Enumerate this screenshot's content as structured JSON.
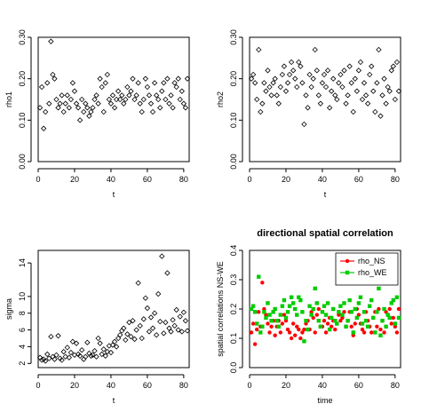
{
  "chart_data": [
    {
      "type": "scatter",
      "title": "",
      "xlabel": "t",
      "ylabel": "rho1",
      "xlim": [
        0,
        83
      ],
      "ylim": [
        0,
        0.3
      ],
      "xticks": [
        "0",
        "20",
        "40",
        "60",
        "80"
      ],
      "yticks": [
        "0.00",
        "0.10",
        "0.20",
        "0.30"
      ],
      "marker": "open-diamond",
      "series": [
        {
          "color": "#000000",
          "x": [
            1,
            2,
            3,
            4,
            5,
            6,
            7,
            8,
            9,
            10,
            11,
            12,
            13,
            14,
            15,
            16,
            17,
            18,
            19,
            20,
            21,
            22,
            23,
            24,
            25,
            26,
            27,
            28,
            29,
            30,
            31,
            32,
            33,
            34,
            35,
            36,
            37,
            38,
            39,
            40,
            41,
            42,
            43,
            44,
            45,
            46,
            47,
            48,
            49,
            50,
            51,
            52,
            53,
            54,
            55,
            56,
            57,
            58,
            59,
            60,
            61,
            62,
            63,
            64,
            65,
            66,
            67,
            68,
            69,
            70,
            71,
            72,
            73,
            74,
            75,
            76,
            77,
            78,
            79,
            80,
            81,
            82
          ],
          "y": [
            0.13,
            0.18,
            0.08,
            0.12,
            0.19,
            0.14,
            0.29,
            0.21,
            0.2,
            0.15,
            0.13,
            0.14,
            0.16,
            0.12,
            0.14,
            0.16,
            0.13,
            0.15,
            0.19,
            0.17,
            0.14,
            0.13,
            0.1,
            0.15,
            0.12,
            0.14,
            0.13,
            0.11,
            0.12,
            0.13,
            0.15,
            0.16,
            0.14,
            0.2,
            0.18,
            0.12,
            0.19,
            0.21,
            0.15,
            0.14,
            0.16,
            0.13,
            0.15,
            0.17,
            0.15,
            0.16,
            0.14,
            0.15,
            0.18,
            0.16,
            0.17,
            0.2,
            0.15,
            0.16,
            0.19,
            0.14,
            0.12,
            0.15,
            0.2,
            0.18,
            0.16,
            0.14,
            0.12,
            0.19,
            0.16,
            0.15,
            0.13,
            0.17,
            0.19,
            0.15,
            0.2,
            0.14,
            0.16,
            0.13,
            0.19,
            0.18,
            0.2,
            0.15,
            0.17,
            0.14,
            0.13,
            0.2
          ]
        }
      ]
    },
    {
      "type": "scatter",
      "title": "",
      "xlabel": "t",
      "ylabel": "rho2",
      "xlim": [
        0,
        83
      ],
      "ylim": [
        0,
        0.3
      ],
      "xticks": [
        "0",
        "20",
        "40",
        "60",
        "80"
      ],
      "yticks": [
        "0.00",
        "0.10",
        "0.20",
        "0.30"
      ],
      "marker": "open-diamond",
      "series": [
        {
          "color": "#000000",
          "x": [
            1,
            2,
            3,
            4,
            5,
            6,
            7,
            8,
            9,
            10,
            11,
            12,
            13,
            14,
            15,
            16,
            17,
            18,
            19,
            20,
            21,
            22,
            23,
            24,
            25,
            26,
            27,
            28,
            29,
            30,
            31,
            32,
            33,
            34,
            35,
            36,
            37,
            38,
            39,
            40,
            41,
            42,
            43,
            44,
            45,
            46,
            47,
            48,
            49,
            50,
            51,
            52,
            53,
            54,
            55,
            56,
            57,
            58,
            59,
            60,
            61,
            62,
            63,
            64,
            65,
            66,
            67,
            68,
            69,
            70,
            71,
            72,
            73,
            74,
            75,
            76,
            77,
            78,
            79,
            80,
            81,
            82
          ],
          "y": [
            0.2,
            0.21,
            0.19,
            0.15,
            0.27,
            0.12,
            0.14,
            0.19,
            0.17,
            0.22,
            0.18,
            0.16,
            0.19,
            0.2,
            0.16,
            0.14,
            0.18,
            0.21,
            0.23,
            0.17,
            0.19,
            0.21,
            0.24,
            0.22,
            0.2,
            0.18,
            0.24,
            0.23,
            0.19,
            0.09,
            0.16,
            0.13,
            0.21,
            0.18,
            0.2,
            0.27,
            0.22,
            0.16,
            0.14,
            0.19,
            0.21,
            0.18,
            0.22,
            0.13,
            0.17,
            0.2,
            0.16,
            0.15,
            0.19,
            0.21,
            0.18,
            0.22,
            0.14,
            0.16,
            0.23,
            0.19,
            0.12,
            0.2,
            0.17,
            0.22,
            0.24,
            0.15,
            0.19,
            0.16,
            0.14,
            0.21,
            0.23,
            0.17,
            0.12,
            0.19,
            0.27,
            0.11,
            0.16,
            0.2,
            0.14,
            0.18,
            0.17,
            0.22,
            0.23,
            0.15,
            0.24,
            0.17
          ]
        }
      ]
    },
    {
      "type": "scatter",
      "title": "",
      "xlabel": "t",
      "ylabel": "sigma",
      "xlim": [
        0,
        83
      ],
      "ylim": [
        1.5,
        15.5
      ],
      "xticks": [
        "0",
        "20",
        "40",
        "60",
        "80"
      ],
      "yticks": [
        "2",
        "4",
        "6",
        "8",
        "10",
        "14"
      ],
      "marker": "open-diamond",
      "series": [
        {
          "color": "#000000",
          "x": [
            1,
            2,
            3,
            4,
            5,
            6,
            7,
            8,
            9,
            10,
            11,
            12,
            13,
            14,
            15,
            16,
            17,
            18,
            19,
            20,
            21,
            22,
            23,
            24,
            25,
            26,
            27,
            28,
            29,
            30,
            31,
            32,
            33,
            34,
            35,
            36,
            37,
            38,
            39,
            40,
            41,
            42,
            43,
            44,
            45,
            46,
            47,
            48,
            49,
            50,
            51,
            52,
            53,
            54,
            55,
            56,
            57,
            58,
            59,
            60,
            61,
            62,
            63,
            64,
            65,
            66,
            67,
            68,
            69,
            70,
            71,
            72,
            73,
            74,
            75,
            76,
            77,
            78,
            79,
            80,
            81,
            82
          ],
          "y": [
            2.7,
            2.4,
            2.5,
            2.3,
            3.1,
            2.6,
            5.2,
            2.8,
            2.5,
            3.0,
            5.3,
            2.6,
            2.4,
            3.4,
            2.8,
            3.9,
            2.7,
            3.3,
            4.6,
            3.0,
            4.4,
            3.1,
            2.9,
            3.6,
            2.5,
            2.8,
            4.5,
            3.2,
            2.9,
            3.0,
            3.5,
            2.8,
            5.0,
            4.4,
            3.1,
            3.7,
            2.9,
            3.4,
            4.1,
            3.3,
            4.2,
            4.6,
            4.0,
            5.0,
            5.4,
            5.9,
            6.2,
            4.8,
            5.5,
            6.9,
            5.2,
            7.1,
            4.9,
            6.0,
            11.6,
            6.5,
            5.0,
            7.3,
            9.8,
            8.6,
            5.8,
            7.5,
            6.2,
            8.0,
            5.4,
            10.3,
            7.0,
            14.8,
            5.6,
            6.9,
            12.8,
            6.2,
            5.8,
            7.2,
            6.5,
            8.4,
            6.0,
            7.6,
            5.8,
            8.1,
            7.1,
            5.9
          ]
        }
      ]
    },
    {
      "type": "scatter",
      "title": "directional spatial correlation",
      "xlabel": "time",
      "ylabel": "spatial correlations NS-WE",
      "xlim": [
        0,
        83
      ],
      "ylim": [
        0,
        0.4
      ],
      "xticks": [
        "0",
        "20",
        "40",
        "60",
        "80"
      ],
      "yticks": [
        "0.0",
        "0.1",
        "0.2",
        "0.3",
        "0.4"
      ],
      "legend_position": "top-right",
      "series": [
        {
          "name": "rho_NS",
          "color": "#ff0000",
          "marker": "filled-circle",
          "x": [
            1,
            2,
            3,
            4,
            5,
            6,
            7,
            8,
            9,
            10,
            11,
            12,
            13,
            14,
            15,
            16,
            17,
            18,
            19,
            20,
            21,
            22,
            23,
            24,
            25,
            26,
            27,
            28,
            29,
            30,
            31,
            32,
            33,
            34,
            35,
            36,
            37,
            38,
            39,
            40,
            41,
            42,
            43,
            44,
            45,
            46,
            47,
            48,
            49,
            50,
            51,
            52,
            53,
            54,
            55,
            56,
            57,
            58,
            59,
            60,
            61,
            62,
            63,
            64,
            65,
            66,
            67,
            68,
            69,
            70,
            71,
            72,
            73,
            74,
            75,
            76,
            77,
            78,
            79,
            80,
            81,
            82
          ],
          "y": [
            0.12,
            0.15,
            0.08,
            0.13,
            0.19,
            0.14,
            0.29,
            0.2,
            0.18,
            0.15,
            0.12,
            0.14,
            0.16,
            0.11,
            0.14,
            0.16,
            0.12,
            0.15,
            0.18,
            0.16,
            0.13,
            0.12,
            0.1,
            0.15,
            0.11,
            0.14,
            0.13,
            0.1,
            0.12,
            0.13,
            0.15,
            0.16,
            0.13,
            0.19,
            0.17,
            0.12,
            0.18,
            0.2,
            0.14,
            0.14,
            0.16,
            0.12,
            0.15,
            0.17,
            0.14,
            0.16,
            0.13,
            0.15,
            0.18,
            0.16,
            0.17,
            0.19,
            0.14,
            0.16,
            0.19,
            0.14,
            0.11,
            0.15,
            0.2,
            0.18,
            0.15,
            0.13,
            0.12,
            0.19,
            0.16,
            0.14,
            0.12,
            0.17,
            0.19,
            0.14,
            0.2,
            0.13,
            0.16,
            0.12,
            0.19,
            0.18,
            0.2,
            0.15,
            0.17,
            0.14,
            0.12,
            0.2
          ]
        },
        {
          "name": "rho_WE",
          "color": "#00cc00",
          "marker": "filled-square",
          "x": [
            1,
            2,
            3,
            4,
            5,
            6,
            7,
            8,
            9,
            10,
            11,
            12,
            13,
            14,
            15,
            16,
            17,
            18,
            19,
            20,
            21,
            22,
            23,
            24,
            25,
            26,
            27,
            28,
            29,
            30,
            31,
            32,
            33,
            34,
            35,
            36,
            37,
            38,
            39,
            40,
            41,
            42,
            43,
            44,
            45,
            46,
            47,
            48,
            49,
            50,
            51,
            52,
            53,
            54,
            55,
            56,
            57,
            58,
            59,
            60,
            61,
            62,
            63,
            64,
            65,
            66,
            67,
            68,
            69,
            70,
            71,
            72,
            73,
            74,
            75,
            76,
            77,
            78,
            79,
            80,
            81,
            82
          ],
          "y": [
            0.2,
            0.21,
            0.19,
            0.15,
            0.31,
            0.12,
            0.14,
            0.19,
            0.17,
            0.22,
            0.18,
            0.16,
            0.19,
            0.2,
            0.16,
            0.14,
            0.18,
            0.21,
            0.23,
            0.17,
            0.19,
            0.21,
            0.24,
            0.22,
            0.2,
            0.18,
            0.24,
            0.23,
            0.19,
            0.09,
            0.16,
            0.13,
            0.21,
            0.18,
            0.2,
            0.27,
            0.22,
            0.16,
            0.14,
            0.19,
            0.21,
            0.18,
            0.22,
            0.13,
            0.17,
            0.2,
            0.16,
            0.15,
            0.19,
            0.21,
            0.18,
            0.22,
            0.14,
            0.16,
            0.23,
            0.19,
            0.12,
            0.2,
            0.17,
            0.22,
            0.24,
            0.15,
            0.19,
            0.16,
            0.14,
            0.21,
            0.23,
            0.17,
            0.12,
            0.19,
            0.27,
            0.11,
            0.16,
            0.2,
            0.14,
            0.18,
            0.17,
            0.22,
            0.23,
            0.15,
            0.24,
            0.17
          ]
        }
      ]
    }
  ]
}
